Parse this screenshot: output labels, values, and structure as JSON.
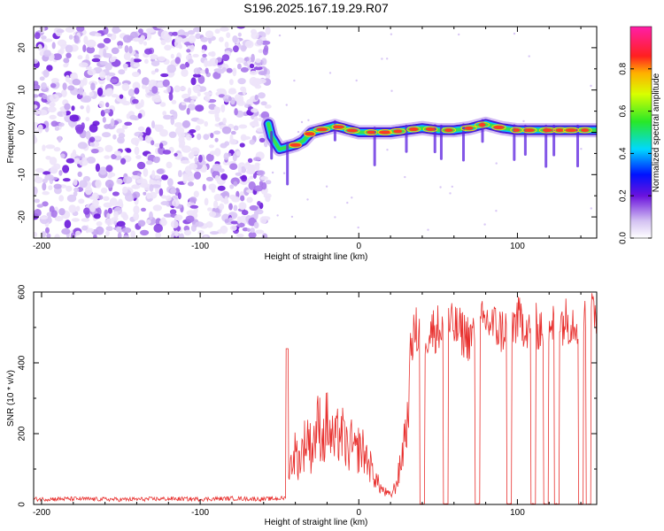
{
  "title": "S196.2025.167.19.29.R07",
  "chart_data": [
    {
      "type": "heatmap",
      "xlabel": "Height of straight line (km)",
      "ylabel": "Frequency (Hz)",
      "xlim": [
        -205,
        150
      ],
      "ylim": [
        -25,
        25
      ],
      "xticks": [
        -200,
        -100,
        0,
        100
      ],
      "xtick_labels": [
        "-200",
        "-100",
        "0",
        "100"
      ],
      "yticks": [
        -20,
        -10,
        0,
        10,
        20
      ],
      "ytick_labels": [
        "-20",
        "-10",
        "0",
        "10",
        "20"
      ],
      "noise_region_x": [
        -205,
        -57
      ],
      "ridge": {
        "description": "dominant frequency track",
        "x": [
          -57,
          -55,
          -50,
          -45,
          -40,
          -35,
          -30,
          -25,
          -20,
          -15,
          -10,
          -5,
          0,
          10,
          20,
          30,
          40,
          50,
          60,
          70,
          80,
          90,
          100,
          110,
          120,
          130,
          140,
          150
        ],
        "y": [
          2,
          -1,
          -4,
          -3.5,
          -3,
          -2,
          0,
          0.5,
          1,
          1.5,
          1,
          0.5,
          0,
          0,
          0,
          0.5,
          1,
          0.5,
          0.5,
          1,
          2,
          1,
          0.5,
          0.5,
          0.5,
          0.5,
          0.5,
          0.5
        ]
      },
      "colorbar": {
        "label": "Normalized spectral amplitude",
        "range": [
          0,
          1
        ],
        "ticks": [
          0.0,
          0.2,
          0.4,
          0.6,
          0.8
        ],
        "tick_labels": [
          "0.0",
          "0.2",
          "0.4",
          "0.6",
          "0.8"
        ]
      }
    },
    {
      "type": "line",
      "xlabel": "Height of straight line (km)",
      "ylabel": "SNR (10 * v/v)",
      "xlim": [
        -205,
        150
      ],
      "ylim": [
        0,
        600
      ],
      "xticks": [
        -200,
        -100,
        0,
        100
      ],
      "xtick_labels": [
        "-200",
        "-100",
        "0",
        "100"
      ],
      "yticks": [
        0,
        200,
        400,
        600
      ],
      "ytick_labels": [
        "0",
        "200",
        "400",
        "600"
      ],
      "color": "#e8302e",
      "series": [
        {
          "name": "SNR",
          "x": [
            -205,
            -180,
            -150,
            -120,
            -100,
            -80,
            -60,
            -46,
            -44,
            -42,
            -40,
            -38,
            -35,
            -32,
            -30,
            -28,
            -25,
            -22,
            -20,
            -18,
            -15,
            -12,
            -10,
            -7,
            -5,
            -2,
            0,
            3,
            6,
            9,
            12,
            15,
            18,
            20,
            23,
            26,
            29,
            31,
            33,
            36,
            40,
            50,
            60,
            70,
            80,
            90,
            100,
            110,
            120,
            130,
            140,
            150
          ],
          "y": [
            15,
            16,
            14,
            16,
            15,
            17,
            15,
            18,
            80,
            130,
            150,
            120,
            160,
            200,
            150,
            190,
            230,
            180,
            240,
            190,
            170,
            210,
            190,
            150,
            170,
            140,
            160,
            150,
            120,
            90,
            60,
            40,
            30,
            25,
            50,
            100,
            200,
            240,
            460,
            490,
            480,
            500,
            500,
            470,
            520,
            490,
            520,
            500,
            510,
            520,
            520,
            540
          ]
        }
      ],
      "dropouts_x": [
        40,
        55,
        75,
        95,
        110,
        118,
        125,
        140,
        145
      ],
      "dropout_value": 0
    }
  ]
}
